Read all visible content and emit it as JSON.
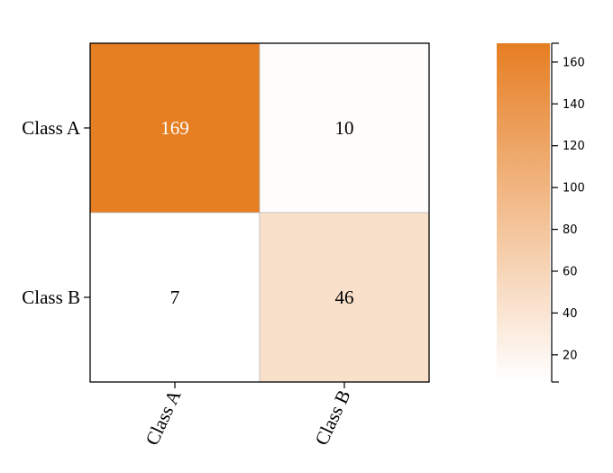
{
  "chart_data": {
    "type": "heatmap",
    "title": "",
    "xlabel": "",
    "ylabel": "",
    "rows": [
      "Class A",
      "Class B"
    ],
    "columns": [
      "Class A",
      "Class B"
    ],
    "values": [
      [
        169,
        10
      ],
      [
        7,
        46
      ]
    ],
    "colorbar": {
      "range": [
        7,
        169
      ],
      "ticks": [
        20,
        40,
        60,
        80,
        100,
        120,
        140,
        160
      ],
      "tick_labels": [
        "20",
        "40",
        "60",
        "80",
        "100",
        "120",
        "140",
        "160"
      ],
      "color_low": "#ffffff",
      "color_high": "#e67e22"
    },
    "grid": false,
    "legend": "colorbar-right"
  }
}
